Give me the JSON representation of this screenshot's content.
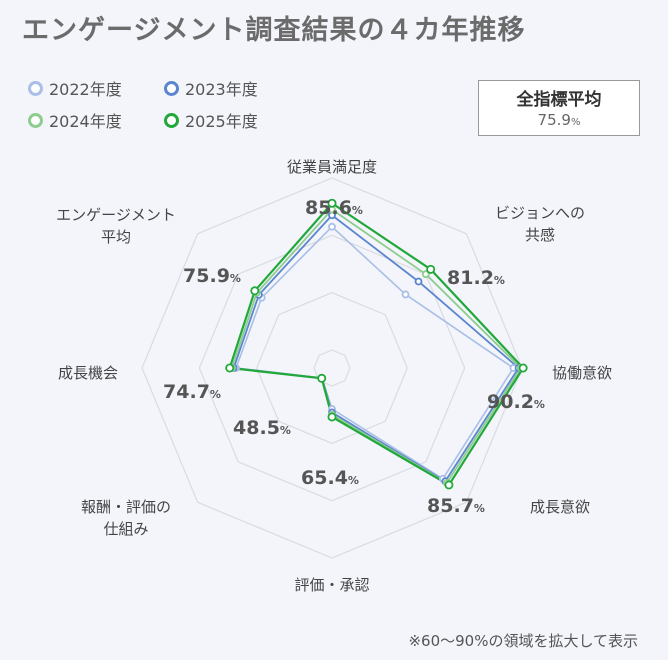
{
  "title": "エンゲージメント調査結果の４カ年推移",
  "average_box": {
    "label": "全指標平均",
    "value": "75.9",
    "unit": "%"
  },
  "footnote": "※60～90%の領域を拡大して表示",
  "colors": {
    "2022": "#a9bfe6",
    "2023": "#5b86cf",
    "2024": "#8fcc8f",
    "2025": "#22a83a"
  },
  "chart_data": {
    "type": "radar",
    "axis_range": [
      60,
      90
    ],
    "grid_rings": [
      60,
      70,
      80,
      90
    ],
    "axes": [
      {
        "label_lines": [
          "従業員満足度"
        ],
        "value_label": "85.6"
      },
      {
        "label_lines": [
          "ビジョンへの",
          "共感"
        ],
        "value_label": "81.2"
      },
      {
        "label_lines": [
          "協働意欲"
        ],
        "value_label": "90.2"
      },
      {
        "label_lines": [
          "成長意欲"
        ],
        "value_label": "85.7"
      },
      {
        "label_lines": [
          "評価・承認"
        ],
        "value_label": "65.4"
      },
      {
        "label_lines": [
          "報酬・評価の",
          "仕組み"
        ],
        "value_label": "48.5"
      },
      {
        "label_lines": [
          "成長機会"
        ],
        "value_label": "74.7"
      },
      {
        "label_lines": [
          "エンゲージメント",
          "平均"
        ],
        "value_label": "75.9"
      }
    ],
    "value_unit": "%",
    "series": [
      {
        "name": "2022年度",
        "values": [
          81.5,
          75.0,
          88.5,
          84.2,
          64.0,
          47.0,
          73.6,
          74.2
        ]
      },
      {
        "name": "2023年度",
        "values": [
          83.5,
          78.2,
          89.4,
          84.8,
          64.6,
          47.6,
          74.0,
          74.9
        ]
      },
      {
        "name": "2024年度",
        "values": [
          84.5,
          80.0,
          89.8,
          85.2,
          65.0,
          48.0,
          74.3,
          75.4
        ]
      },
      {
        "name": "2025年度",
        "values": [
          85.6,
          81.2,
          90.2,
          85.7,
          65.4,
          48.5,
          74.7,
          75.9
        ]
      }
    ]
  }
}
